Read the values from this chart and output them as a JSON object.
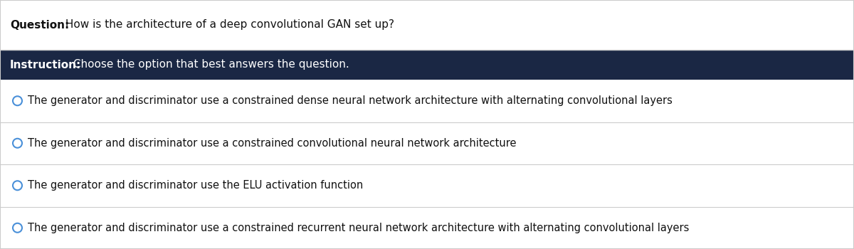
{
  "question_label": "Question:",
  "question_text": " How is the architecture of a deep convolutional GAN set up?",
  "instruction_label": "Instruction:",
  "instruction_text": " Choose the option that best answers the question.",
  "options": [
    "The generator and discriminator use a constrained dense neural network architecture with alternating convolutional layers",
    "The generator and discriminator use a constrained convolutional neural network architecture",
    "The generator and discriminator use the ELU activation function",
    "The generator and discriminator use a constrained recurrent neural network architecture with alternating convolutional layers"
  ],
  "bg_color": "#ffffff",
  "instruction_bg": "#1a2744",
  "instruction_text_color": "#ffffff",
  "question_bg": "#ffffff",
  "option_bg": "#ffffff",
  "border_color": "#cccccc",
  "circle_color": "#4a90d9",
  "question_text_color": "#111111",
  "option_text_color": "#111111",
  "question_bold_color": "#111111",
  "figwidth": 12.0,
  "figheight": 3.5,
  "dpi": 100
}
